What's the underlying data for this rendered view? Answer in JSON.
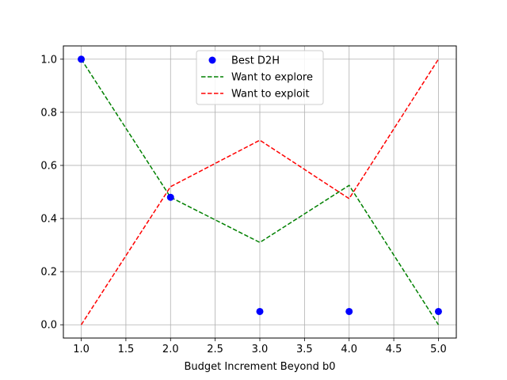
{
  "chart_data": {
    "type": "scatter",
    "title": "",
    "xlabel": "Budget Increment Beyond b0",
    "ylabel": "",
    "xlim": [
      0.8,
      5.2
    ],
    "ylim": [
      -0.05,
      1.05
    ],
    "xticks": [
      "1.0",
      "1.5",
      "2.0",
      "2.5",
      "3.0",
      "3.5",
      "4.0",
      "4.5",
      "5.0"
    ],
    "yticks": [
      "0.0",
      "0.2",
      "0.4",
      "0.6",
      "0.8",
      "1.0"
    ],
    "grid": true,
    "legend": "top-center",
    "series": [
      {
        "name": "Best D2H",
        "kind": "scatter",
        "color": "#0000ff",
        "x": [
          1,
          2,
          3,
          4,
          5
        ],
        "y": [
          1.0,
          0.48,
          0.05,
          0.05,
          0.05
        ]
      },
      {
        "name": "Want to explore",
        "kind": "line",
        "style": "dashed",
        "color": "#008000",
        "x": [
          1,
          2,
          3,
          4,
          5
        ],
        "y": [
          1.0,
          0.48,
          0.31,
          0.525,
          0.0
        ]
      },
      {
        "name": "Want to exploit",
        "kind": "line",
        "style": "dashed",
        "color": "#ff0000",
        "x": [
          1,
          2,
          3,
          4,
          5
        ],
        "y": [
          0.0,
          0.52,
          0.695,
          0.475,
          1.0
        ]
      }
    ]
  }
}
